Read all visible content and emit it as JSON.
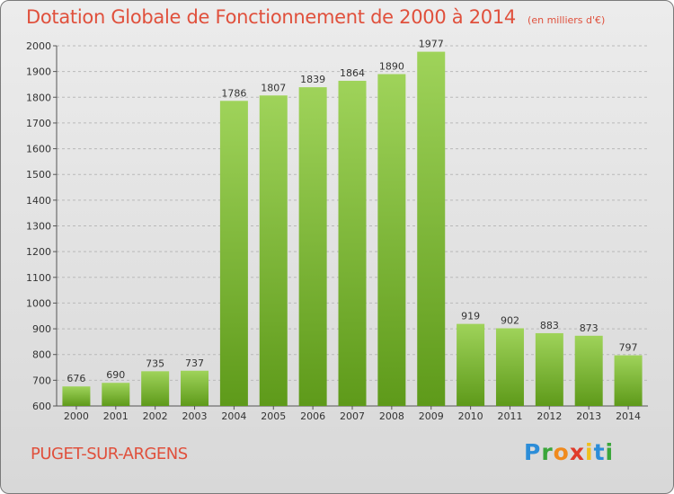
{
  "header": {
    "title": "Dotation Globale de Fonctionnement de 2000 à 2014",
    "subtitle": "(en milliers d'€)"
  },
  "footer": {
    "commune": "PUGET-SUR-ARGENS",
    "logo": {
      "letters": [
        "P",
        "r",
        "o",
        "x",
        "i",
        "t",
        "i"
      ]
    }
  },
  "colors": {
    "accent": "#e0503c",
    "bar_top": "#9fd35a",
    "bar_bottom": "#5e9a1a"
  },
  "chart_data": {
    "type": "bar",
    "title": "Dotation Globale de Fonctionnement de 2000 à 2014",
    "subtitle": "(en milliers d'€)",
    "categories": [
      "2000",
      "2001",
      "2002",
      "2003",
      "2004",
      "2005",
      "2006",
      "2007",
      "2008",
      "2009",
      "2010",
      "2011",
      "2012",
      "2013",
      "2014"
    ],
    "values": [
      676,
      690,
      735,
      737,
      1786,
      1807,
      1839,
      1864,
      1890,
      1977,
      919,
      902,
      883,
      873,
      797
    ],
    "ylim": [
      600,
      2000
    ],
    "yticks": [
      600,
      700,
      800,
      900,
      1000,
      1100,
      1200,
      1300,
      1400,
      1500,
      1600,
      1700,
      1800,
      1900,
      2000
    ],
    "xlabel": "",
    "ylabel": "",
    "grid": true,
    "data_labels": true
  }
}
